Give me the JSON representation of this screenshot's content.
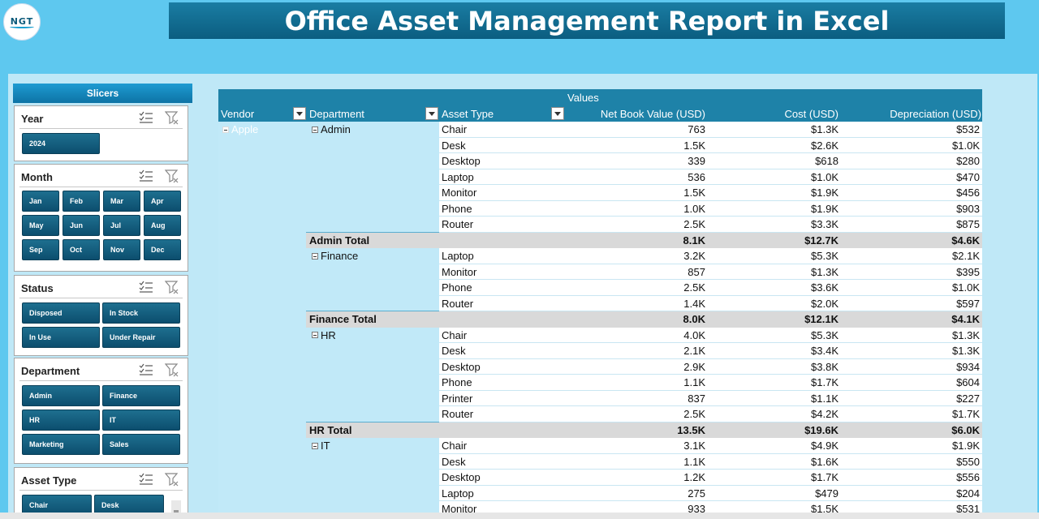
{
  "header": {
    "title": "Office Asset Management Report in Excel",
    "logo_text": "NGT",
    "logo_sub": "NEXT GEN TEMPLATES"
  },
  "slicers": {
    "title": "Slicers",
    "year": {
      "label": "Year",
      "items": [
        "2024"
      ]
    },
    "month": {
      "label": "Month",
      "items": [
        "Jan",
        "Feb",
        "Mar",
        "Apr",
        "May",
        "Jun",
        "Jul",
        "Aug",
        "Sep",
        "Oct",
        "Nov",
        "Dec"
      ]
    },
    "status": {
      "label": "Status",
      "items": [
        "Disposed",
        "In Stock",
        "In Use",
        "Under Repair"
      ]
    },
    "department": {
      "label": "Department",
      "items": [
        "Admin",
        "Finance",
        "HR",
        "IT",
        "Marketing",
        "Sales"
      ]
    },
    "asset_type": {
      "label": "Asset Type",
      "items": [
        "Chair",
        "Desk"
      ]
    }
  },
  "pivot": {
    "values_label": "Values",
    "columns": {
      "vendor": "Vendor",
      "department": "Department",
      "asset_type": "Asset Type",
      "nbv": "Net Book Value (USD)",
      "cost": "Cost (USD)",
      "depreciation": "Depreciation (USD)"
    },
    "vendor": "Apple",
    "groups": [
      {
        "name": "Admin",
        "rows": [
          {
            "asset": "Chair",
            "nbv": "763",
            "cost": "$1.3K",
            "dep": "$532"
          },
          {
            "asset": "Desk",
            "nbv": "1.5K",
            "cost": "$2.6K",
            "dep": "$1.0K"
          },
          {
            "asset": "Desktop",
            "nbv": "339",
            "cost": "$618",
            "dep": "$280"
          },
          {
            "asset": "Laptop",
            "nbv": "536",
            "cost": "$1.0K",
            "dep": "$470"
          },
          {
            "asset": "Monitor",
            "nbv": "1.5K",
            "cost": "$1.9K",
            "dep": "$456"
          },
          {
            "asset": "Phone",
            "nbv": "1.0K",
            "cost": "$1.9K",
            "dep": "$903"
          },
          {
            "asset": "Router",
            "nbv": "2.5K",
            "cost": "$3.3K",
            "dep": "$875"
          }
        ],
        "total": {
          "label": "Admin Total",
          "nbv": "8.1K",
          "cost": "$12.7K",
          "dep": "$4.6K"
        }
      },
      {
        "name": "Finance",
        "rows": [
          {
            "asset": "Laptop",
            "nbv": "3.2K",
            "cost": "$5.3K",
            "dep": "$2.1K"
          },
          {
            "asset": "Monitor",
            "nbv": "857",
            "cost": "$1.3K",
            "dep": "$395"
          },
          {
            "asset": "Phone",
            "nbv": "2.5K",
            "cost": "$3.6K",
            "dep": "$1.0K"
          },
          {
            "asset": "Router",
            "nbv": "1.4K",
            "cost": "$2.0K",
            "dep": "$597"
          }
        ],
        "total": {
          "label": "Finance Total",
          "nbv": "8.0K",
          "cost": "$12.1K",
          "dep": "$4.1K"
        }
      },
      {
        "name": "HR",
        "rows": [
          {
            "asset": "Chair",
            "nbv": "4.0K",
            "cost": "$5.3K",
            "dep": "$1.3K"
          },
          {
            "asset": "Desk",
            "nbv": "2.1K",
            "cost": "$3.4K",
            "dep": "$1.3K"
          },
          {
            "asset": "Desktop",
            "nbv": "2.9K",
            "cost": "$3.8K",
            "dep": "$934"
          },
          {
            "asset": "Phone",
            "nbv": "1.1K",
            "cost": "$1.7K",
            "dep": "$604"
          },
          {
            "asset": "Printer",
            "nbv": "837",
            "cost": "$1.1K",
            "dep": "$227"
          },
          {
            "asset": "Router",
            "nbv": "2.5K",
            "cost": "$4.2K",
            "dep": "$1.7K"
          }
        ],
        "total": {
          "label": "HR Total",
          "nbv": "13.5K",
          "cost": "$19.6K",
          "dep": "$6.0K"
        }
      },
      {
        "name": "IT",
        "rows": [
          {
            "asset": "Chair",
            "nbv": "3.1K",
            "cost": "$4.9K",
            "dep": "$1.9K"
          },
          {
            "asset": "Desk",
            "nbv": "1.1K",
            "cost": "$1.6K",
            "dep": "$550"
          },
          {
            "asset": "Desktop",
            "nbv": "1.2K",
            "cost": "$1.7K",
            "dep": "$556"
          },
          {
            "asset": "Laptop",
            "nbv": "275",
            "cost": "$479",
            "dep": "$204"
          },
          {
            "asset": "Monitor",
            "nbv": "933",
            "cost": "$1.5K",
            "dep": "$531"
          }
        ],
        "total": null
      }
    ]
  }
}
